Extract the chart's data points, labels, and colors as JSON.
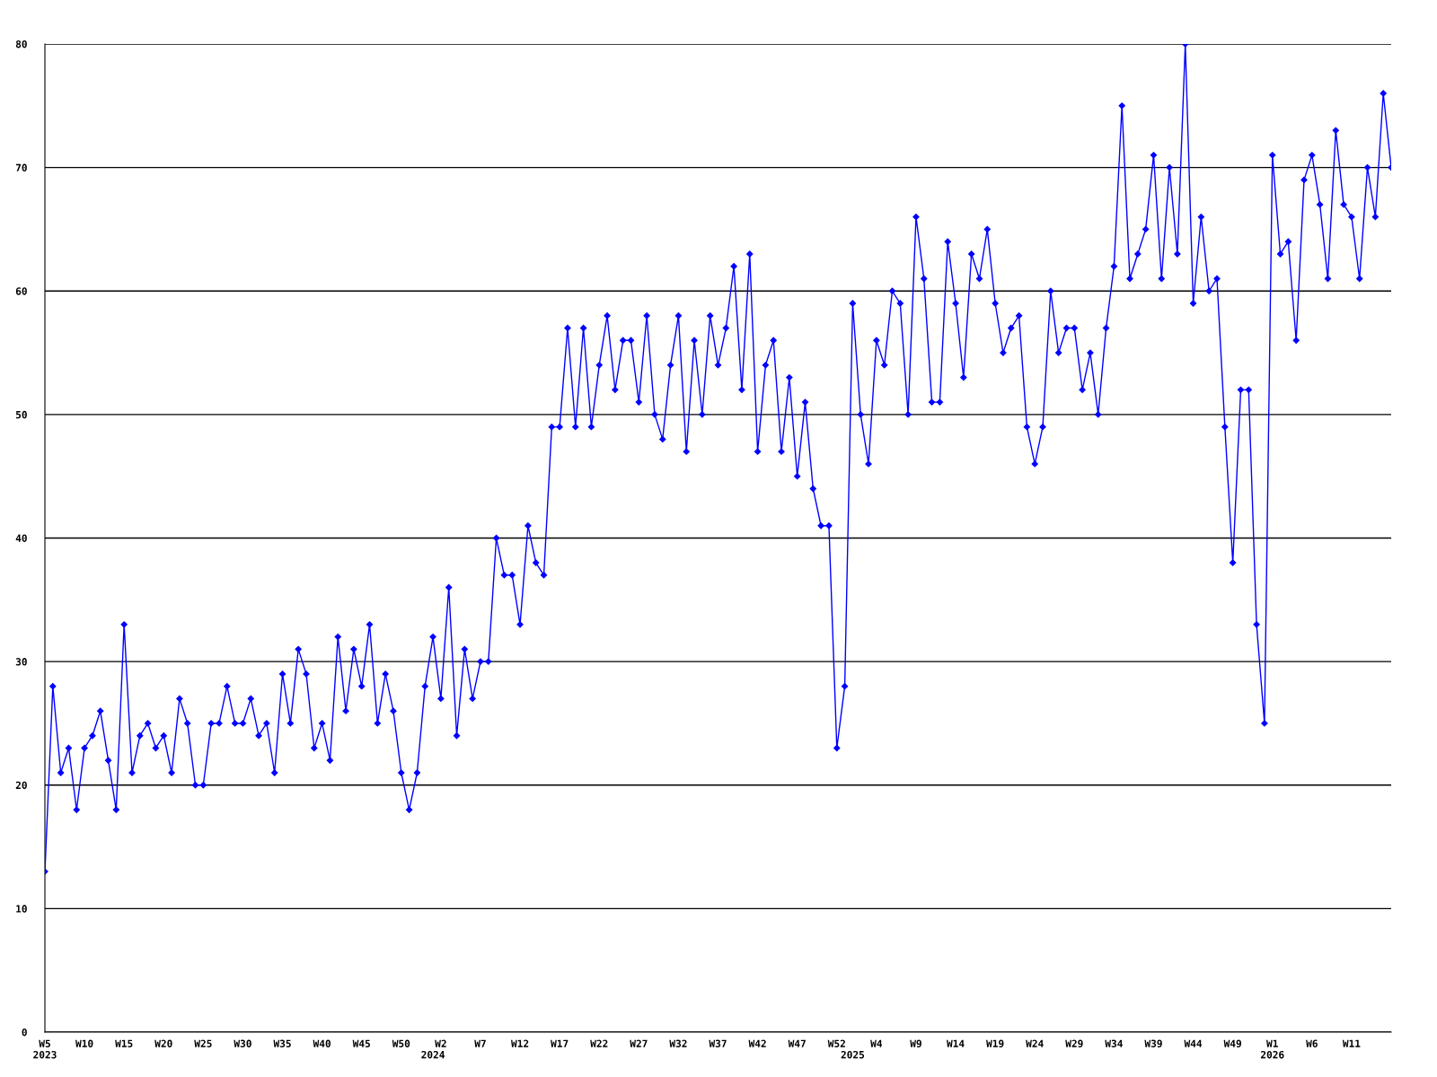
{
  "chart_data": {
    "type": "line",
    "categories": [
      "W5\n2023",
      null,
      null,
      null,
      null,
      "W10",
      null,
      null,
      null,
      null,
      "W15",
      null,
      null,
      null,
      null,
      "W20",
      null,
      null,
      null,
      null,
      "W25",
      null,
      null,
      null,
      null,
      "W30",
      null,
      null,
      null,
      null,
      "W35",
      null,
      null,
      null,
      null,
      "W40",
      null,
      null,
      null,
      null,
      "W45",
      null,
      null,
      null,
      null,
      "W50",
      null,
      null,
      null,
      "\n2024",
      "W2",
      null,
      null,
      null,
      null,
      "W7",
      null,
      null,
      null,
      null,
      "W12",
      null,
      null,
      null,
      null,
      "W17",
      null,
      null,
      null,
      null,
      "W22",
      null,
      null,
      null,
      null,
      "W27",
      null,
      null,
      null,
      null,
      "W32",
      null,
      null,
      null,
      null,
      "W37",
      null,
      null,
      null,
      null,
      "W42",
      null,
      null,
      null,
      null,
      "W47",
      null,
      null,
      null,
      null,
      "W52",
      null,
      "\n2025",
      null,
      null,
      "W4",
      null,
      null,
      null,
      null,
      "W9",
      null,
      null,
      null,
      null,
      "W14",
      null,
      null,
      null,
      null,
      "W19",
      null,
      null,
      null,
      null,
      "W24",
      null,
      null,
      null,
      null,
      "W29",
      null,
      null,
      null,
      null,
      "W34",
      null,
      null,
      null,
      null,
      "W39",
      null,
      null,
      null,
      null,
      "W44",
      null,
      null,
      null,
      null,
      "W49",
      null,
      null,
      null,
      null,
      "W1\n2026",
      null,
      null,
      null,
      null,
      "W6",
      null,
      null,
      null,
      null,
      "W11",
      null,
      null,
      null,
      null,
      null
    ],
    "series": [
      {
        "color": "#0000ff",
        "values": [
          13,
          28,
          21,
          23,
          18,
          23,
          24,
          26,
          22,
          18,
          33,
          21,
          24,
          25,
          23,
          24,
          21,
          27,
          25,
          20,
          20,
          25,
          25,
          28,
          25,
          25,
          27,
          24,
          25,
          21,
          29,
          25,
          31,
          29,
          23,
          25,
          22,
          32,
          26,
          31,
          28,
          33,
          25,
          29,
          26,
          21,
          18,
          21,
          28,
          32,
          27,
          36,
          24,
          31,
          27,
          30,
          30,
          40,
          37,
          37,
          33,
          41,
          38,
          37,
          49,
          49,
          57,
          49,
          57,
          49,
          54,
          58,
          52,
          56,
          56,
          51,
          58,
          50,
          48,
          54,
          58,
          47,
          56,
          50,
          58,
          54,
          57,
          62,
          52,
          63,
          47,
          54,
          56,
          47,
          53,
          45,
          51,
          44,
          41,
          41,
          23,
          28,
          59,
          50,
          46,
          56,
          54,
          60,
          59,
          50,
          66,
          61,
          51,
          51,
          64,
          59,
          53,
          63,
          61,
          65,
          59,
          55,
          57,
          58,
          49,
          46,
          49,
          60,
          55,
          57,
          57,
          52,
          55,
          50,
          57,
          62,
          75,
          61,
          63,
          65,
          71,
          61,
          70,
          63,
          80,
          59,
          66,
          60,
          61,
          49,
          38,
          52,
          52,
          33,
          25,
          71,
          63,
          64,
          56,
          69,
          71,
          67,
          61,
          73,
          67,
          66,
          61,
          70,
          66,
          76,
          70
        ]
      }
    ],
    "ylim": [
      0,
      80
    ],
    "yticks": [
      0,
      10,
      20,
      30,
      40,
      50,
      60,
      70,
      80
    ],
    "grid": "y",
    "marker": "diamond",
    "line_style": "solid"
  }
}
